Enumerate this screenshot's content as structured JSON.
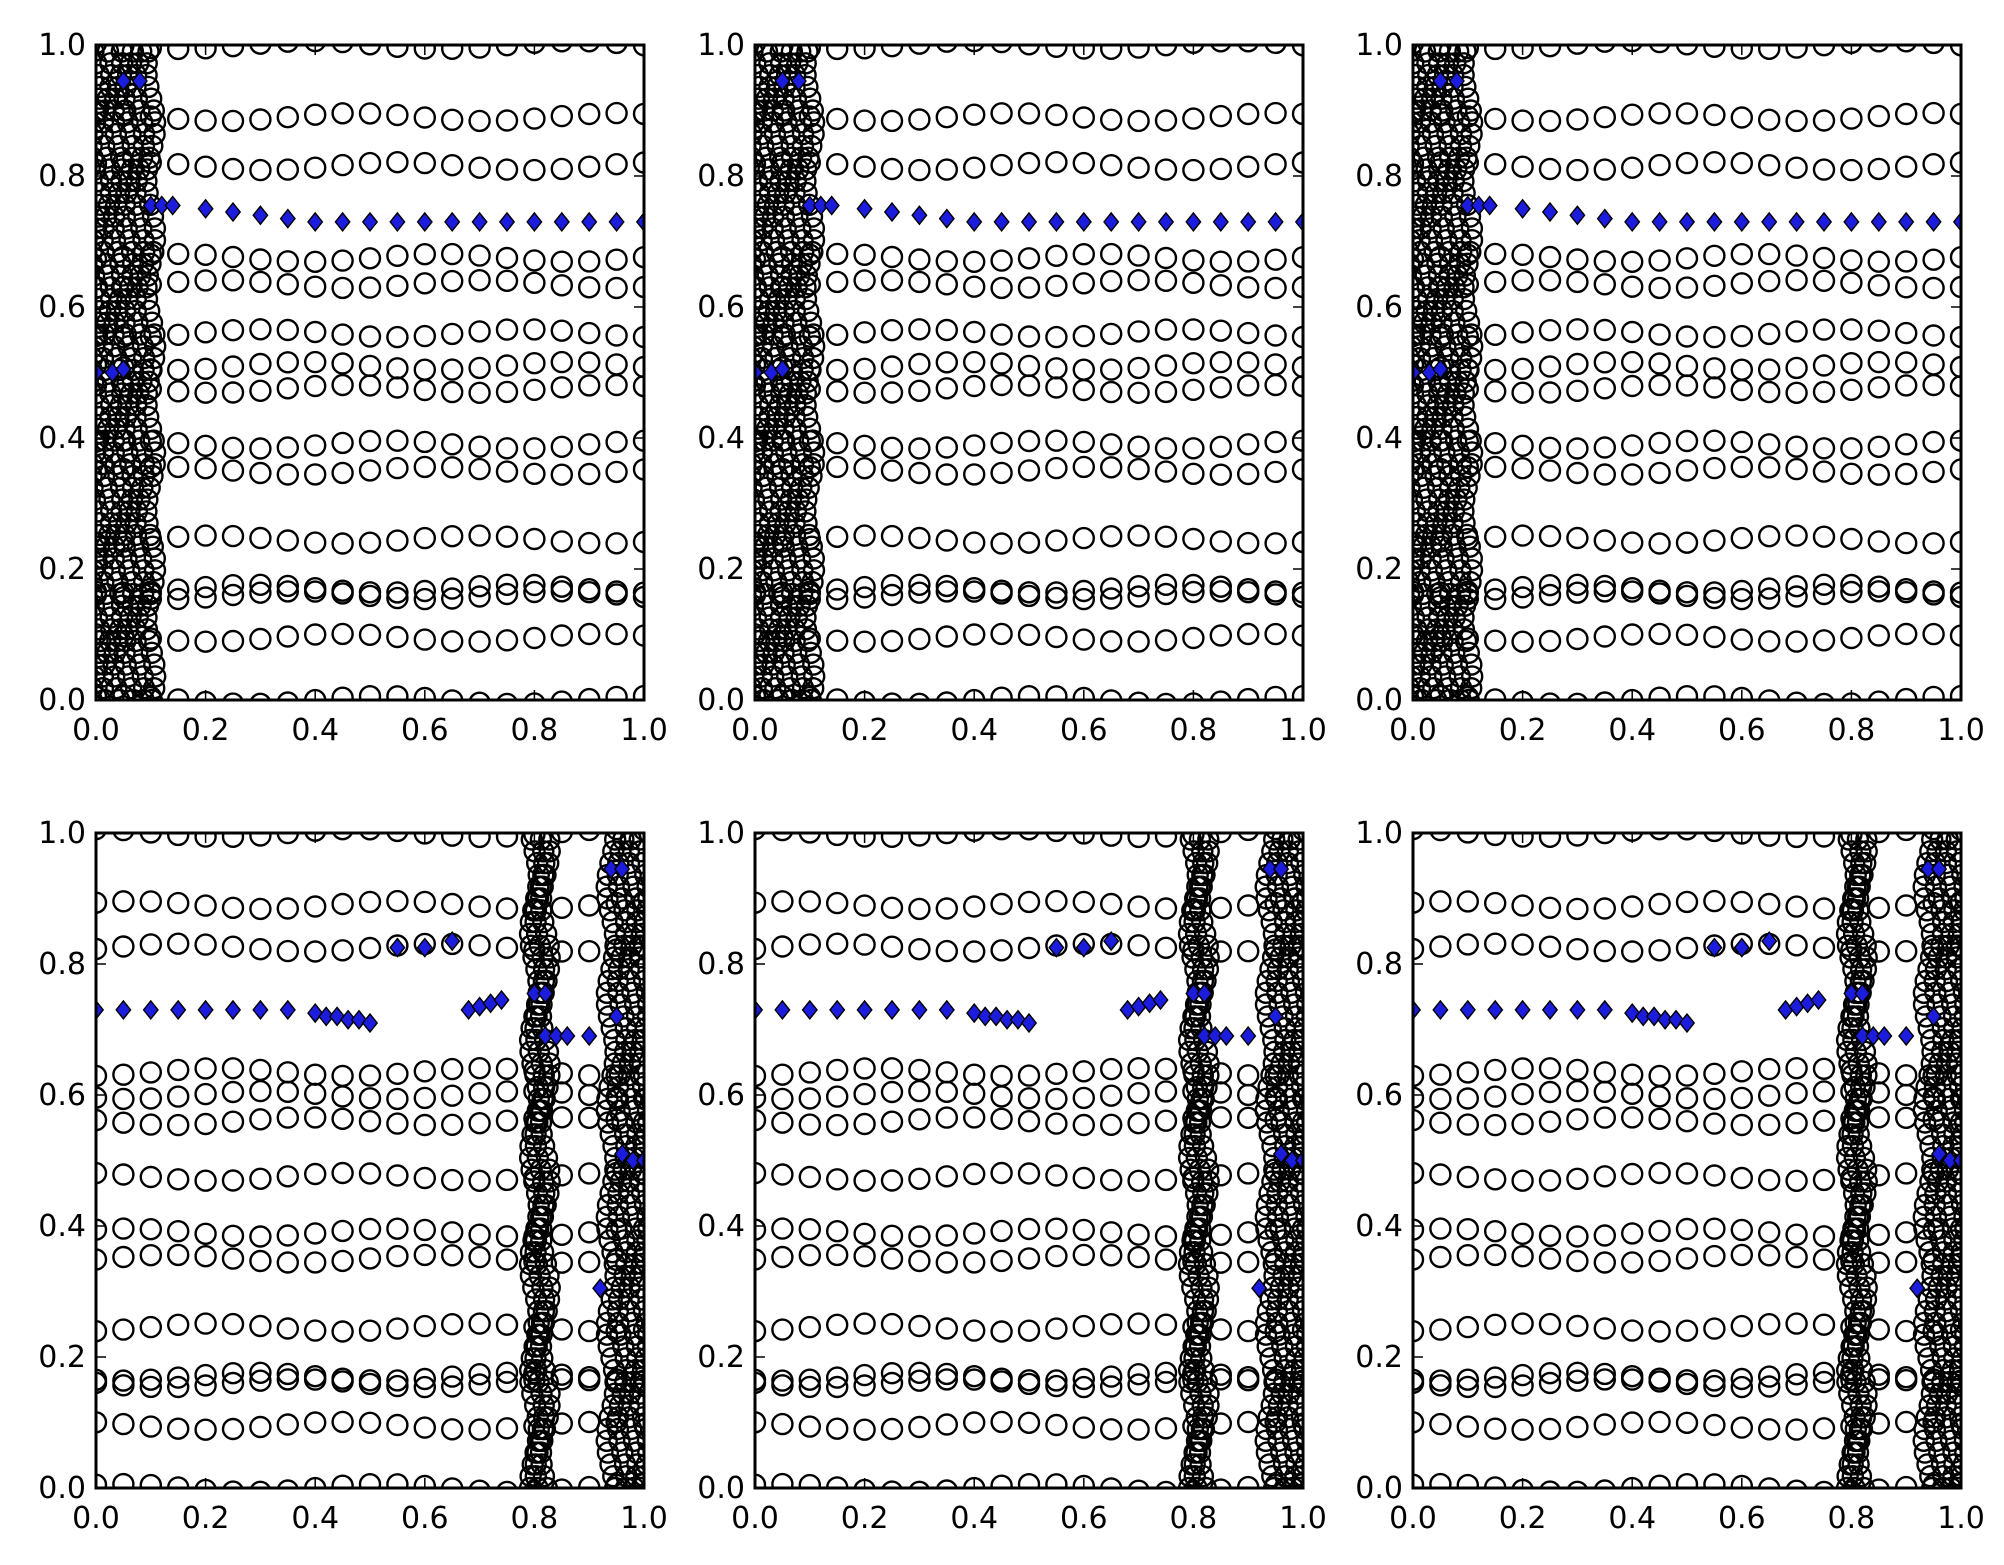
{
  "figure": {
    "layout": "2 rows x 3 columns",
    "colors": {
      "circle_stroke": "#000000",
      "diamond_fill": "#1c1cdc",
      "axes": "#000000",
      "background": "#ffffff"
    }
  },
  "chart_data": [
    {
      "type": "scatter",
      "panel": "top-left",
      "title": "",
      "xlabel": "",
      "ylabel": "",
      "xlim": [
        0,
        1
      ],
      "ylim": [
        0,
        1
      ],
      "xticks": [
        "0.0",
        "0.2",
        "0.4",
        "0.6",
        "0.8",
        "1.0"
      ],
      "yticks": [
        "0.0",
        "0.2",
        "0.4",
        "0.6",
        "0.8",
        "1.0"
      ],
      "circle_rows": [
        0.0,
        0.095,
        0.16,
        0.17,
        0.245,
        0.35,
        0.39,
        0.475,
        0.51,
        0.56,
        0.635,
        0.675,
        0.815,
        0.89,
        1.0
      ],
      "circle_columns": [
        0.0,
        0.02,
        0.04,
        0.06,
        0.08,
        0.1
      ],
      "series": [
        {
          "name": "diamonds",
          "marker": "diamond",
          "x": [
            0.05,
            0.08,
            0.1,
            0.12,
            0.14,
            0.2,
            0.25,
            0.3,
            0.35,
            0.4,
            0.45,
            0.5,
            0.55,
            0.6,
            0.65,
            0.7,
            0.75,
            0.8,
            0.85,
            0.9,
            0.95,
            1.0,
            0.0,
            0.03,
            0.05
          ],
          "y": [
            0.945,
            0.945,
            0.755,
            0.755,
            0.755,
            0.75,
            0.745,
            0.74,
            0.735,
            0.73,
            0.73,
            0.73,
            0.73,
            0.73,
            0.73,
            0.73,
            0.73,
            0.73,
            0.73,
            0.73,
            0.73,
            0.73,
            0.5,
            0.5,
            0.505
          ]
        }
      ]
    },
    {
      "type": "scatter",
      "panel": "top-middle",
      "title": "",
      "xlabel": "",
      "ylabel": "",
      "xlim": [
        0,
        1
      ],
      "ylim": [
        0,
        1
      ],
      "xticks": [
        "0.0",
        "0.2",
        "0.4",
        "0.6",
        "0.8",
        "1.0"
      ],
      "yticks": [
        "0.0",
        "0.2",
        "0.4",
        "0.6",
        "0.8",
        "1.0"
      ],
      "circle_rows": [
        0.0,
        0.095,
        0.16,
        0.17,
        0.245,
        0.35,
        0.39,
        0.475,
        0.51,
        0.56,
        0.635,
        0.675,
        0.815,
        0.89,
        1.0
      ],
      "circle_columns": [
        0.0,
        0.02,
        0.04,
        0.06,
        0.08,
        0.1
      ],
      "series": [
        {
          "name": "diamonds",
          "marker": "diamond",
          "x": [
            0.05,
            0.08,
            0.1,
            0.12,
            0.14,
            0.2,
            0.25,
            0.3,
            0.35,
            0.4,
            0.45,
            0.5,
            0.55,
            0.6,
            0.65,
            0.7,
            0.75,
            0.8,
            0.85,
            0.9,
            0.95,
            1.0,
            0.0,
            0.03,
            0.05
          ],
          "y": [
            0.945,
            0.945,
            0.755,
            0.755,
            0.755,
            0.75,
            0.745,
            0.74,
            0.735,
            0.73,
            0.73,
            0.73,
            0.73,
            0.73,
            0.73,
            0.73,
            0.73,
            0.73,
            0.73,
            0.73,
            0.73,
            0.73,
            0.5,
            0.5,
            0.505
          ]
        }
      ]
    },
    {
      "type": "scatter",
      "panel": "top-right",
      "title": "",
      "xlabel": "",
      "ylabel": "",
      "xlim": [
        0,
        1
      ],
      "ylim": [
        0,
        1
      ],
      "xticks": [
        "0.0",
        "0.2",
        "0.4",
        "0.6",
        "0.8",
        "1.0"
      ],
      "yticks": [
        "0.0",
        "0.2",
        "0.4",
        "0.6",
        "0.8",
        "1.0"
      ],
      "circle_rows": [
        0.0,
        0.095,
        0.16,
        0.17,
        0.245,
        0.35,
        0.39,
        0.475,
        0.51,
        0.56,
        0.635,
        0.675,
        0.815,
        0.89,
        1.0
      ],
      "circle_columns": [
        0.0,
        0.02,
        0.04,
        0.06,
        0.08,
        0.1
      ],
      "series": [
        {
          "name": "diamonds",
          "marker": "diamond",
          "x": [
            0.05,
            0.08,
            0.1,
            0.12,
            0.14,
            0.2,
            0.25,
            0.3,
            0.35,
            0.4,
            0.45,
            0.5,
            0.55,
            0.6,
            0.65,
            0.7,
            0.75,
            0.8,
            0.85,
            0.9,
            0.95,
            1.0,
            0.0,
            0.03,
            0.05
          ],
          "y": [
            0.945,
            0.945,
            0.755,
            0.755,
            0.755,
            0.75,
            0.745,
            0.74,
            0.735,
            0.73,
            0.73,
            0.73,
            0.73,
            0.73,
            0.73,
            0.73,
            0.73,
            0.73,
            0.73,
            0.73,
            0.73,
            0.73,
            0.5,
            0.5,
            0.505
          ]
        }
      ]
    },
    {
      "type": "scatter",
      "panel": "bottom-left",
      "title": "",
      "xlabel": "",
      "ylabel": "",
      "xlim": [
        0,
        1
      ],
      "ylim": [
        0,
        1
      ],
      "xticks": [
        "0.0",
        "0.2",
        "0.4",
        "0.6",
        "0.8",
        "1.0"
      ],
      "yticks": [
        "0.0",
        "0.2",
        "0.4",
        "0.6",
        "0.8",
        "1.0"
      ],
      "circle_rows": [
        0.0,
        0.095,
        0.16,
        0.17,
        0.245,
        0.35,
        0.39,
        0.475,
        0.56,
        0.6,
        0.635,
        0.825,
        0.89,
        1.0
      ],
      "circle_columns": [
        0.8,
        0.81,
        0.82,
        0.94,
        0.96,
        0.98,
        1.0
      ],
      "series": [
        {
          "name": "diamonds",
          "marker": "diamond",
          "x": [
            0.0,
            0.05,
            0.1,
            0.15,
            0.2,
            0.25,
            0.3,
            0.35,
            0.4,
            0.42,
            0.44,
            0.46,
            0.48,
            0.5,
            0.55,
            0.6,
            0.65,
            0.68,
            0.7,
            0.72,
            0.74,
            0.8,
            0.82,
            0.82,
            0.84,
            0.86,
            0.9,
            0.94,
            0.96,
            0.95,
            0.96,
            0.98,
            1.0,
            0.92
          ],
          "y": [
            0.73,
            0.73,
            0.73,
            0.73,
            0.73,
            0.73,
            0.73,
            0.73,
            0.725,
            0.72,
            0.72,
            0.715,
            0.715,
            0.71,
            0.825,
            0.825,
            0.835,
            0.73,
            0.735,
            0.74,
            0.745,
            0.755,
            0.755,
            0.69,
            0.69,
            0.69,
            0.69,
            0.945,
            0.945,
            0.72,
            0.51,
            0.5,
            0.5,
            0.305
          ]
        }
      ]
    },
    {
      "type": "scatter",
      "panel": "bottom-middle",
      "title": "",
      "xlabel": "",
      "ylabel": "",
      "xlim": [
        0,
        1
      ],
      "ylim": [
        0,
        1
      ],
      "xticks": [
        "0.0",
        "0.2",
        "0.4",
        "0.6",
        "0.8",
        "1.0"
      ],
      "yticks": [
        "0.0",
        "0.2",
        "0.4",
        "0.6",
        "0.8",
        "1.0"
      ],
      "circle_rows": [
        0.0,
        0.095,
        0.16,
        0.17,
        0.245,
        0.35,
        0.39,
        0.475,
        0.56,
        0.6,
        0.635,
        0.825,
        0.89,
        1.0
      ],
      "circle_columns": [
        0.8,
        0.81,
        0.82,
        0.94,
        0.96,
        0.98,
        1.0
      ],
      "series": [
        {
          "name": "diamonds",
          "marker": "diamond",
          "x": [
            0.0,
            0.05,
            0.1,
            0.15,
            0.2,
            0.25,
            0.3,
            0.35,
            0.4,
            0.42,
            0.44,
            0.46,
            0.48,
            0.5,
            0.55,
            0.6,
            0.65,
            0.68,
            0.7,
            0.72,
            0.74,
            0.8,
            0.82,
            0.82,
            0.84,
            0.86,
            0.9,
            0.94,
            0.96,
            0.95,
            0.96,
            0.98,
            1.0,
            0.92
          ],
          "y": [
            0.73,
            0.73,
            0.73,
            0.73,
            0.73,
            0.73,
            0.73,
            0.73,
            0.725,
            0.72,
            0.72,
            0.715,
            0.715,
            0.71,
            0.825,
            0.825,
            0.835,
            0.73,
            0.735,
            0.74,
            0.745,
            0.755,
            0.755,
            0.69,
            0.69,
            0.69,
            0.69,
            0.945,
            0.945,
            0.72,
            0.51,
            0.5,
            0.5,
            0.305
          ]
        }
      ]
    },
    {
      "type": "scatter",
      "panel": "bottom-right",
      "title": "",
      "xlabel": "",
      "ylabel": "",
      "xlim": [
        0,
        1
      ],
      "ylim": [
        0,
        1
      ],
      "xticks": [
        "0.0",
        "0.2",
        "0.4",
        "0.6",
        "0.8",
        "1.0"
      ],
      "yticks": [
        "0.0",
        "0.2",
        "0.4",
        "0.6",
        "0.8",
        "1.0"
      ],
      "circle_rows": [
        0.0,
        0.095,
        0.16,
        0.17,
        0.245,
        0.35,
        0.39,
        0.475,
        0.56,
        0.6,
        0.635,
        0.825,
        0.89,
        1.0
      ],
      "circle_columns": [
        0.8,
        0.81,
        0.82,
        0.94,
        0.96,
        0.98,
        1.0
      ],
      "series": [
        {
          "name": "diamonds",
          "marker": "diamond",
          "x": [
            0.0,
            0.05,
            0.1,
            0.15,
            0.2,
            0.25,
            0.3,
            0.35,
            0.4,
            0.42,
            0.44,
            0.46,
            0.48,
            0.5,
            0.55,
            0.6,
            0.65,
            0.68,
            0.7,
            0.72,
            0.74,
            0.8,
            0.82,
            0.82,
            0.84,
            0.86,
            0.9,
            0.94,
            0.96,
            0.95,
            0.96,
            0.98,
            1.0,
            0.92
          ],
          "y": [
            0.73,
            0.73,
            0.73,
            0.73,
            0.73,
            0.73,
            0.73,
            0.73,
            0.725,
            0.72,
            0.72,
            0.715,
            0.715,
            0.71,
            0.825,
            0.825,
            0.835,
            0.73,
            0.735,
            0.74,
            0.745,
            0.755,
            0.755,
            0.69,
            0.69,
            0.69,
            0.69,
            0.945,
            0.945,
            0.72,
            0.51,
            0.5,
            0.5,
            0.305
          ]
        }
      ]
    }
  ]
}
